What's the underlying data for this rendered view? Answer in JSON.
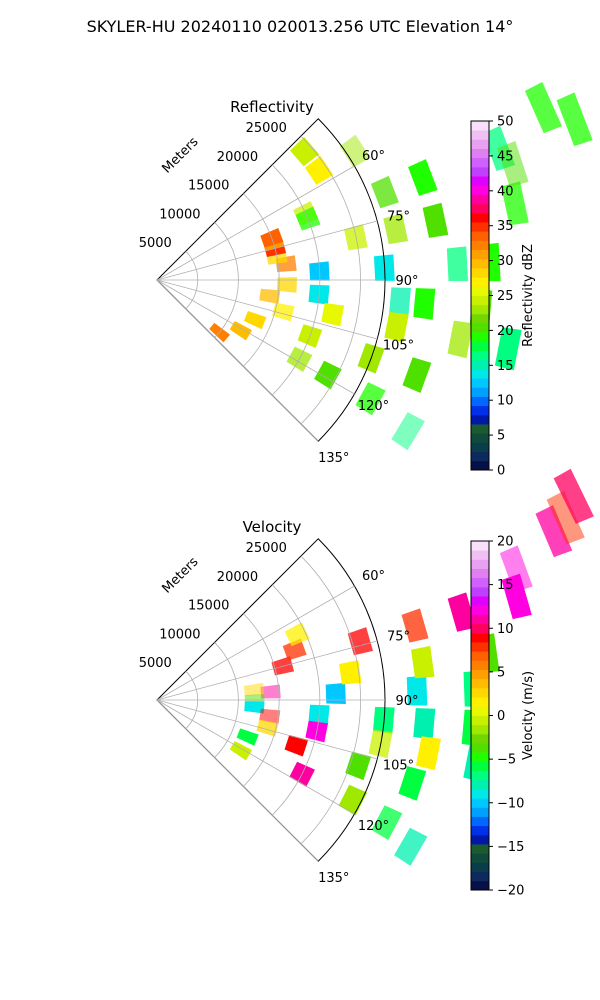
{
  "figure": {
    "suptitle": "SKYLER-HU  20240110  020013.256 UTC Elevation 14°"
  },
  "chart_data": [
    {
      "type": "heatmap",
      "title": "Reflectivity",
      "radial_label": "Meters",
      "radial_ticks": [
        5000,
        10000,
        15000,
        20000,
        25000
      ],
      "radial_tick_labels": [
        "5000",
        "10000",
        "15000",
        "20000",
        "25000"
      ],
      "r_max": 28000,
      "angle_ticks": [
        60,
        75,
        90,
        105,
        120,
        135
      ],
      "angle_tick_labels": [
        "60°",
        "75°",
        "90°",
        "105°",
        "120°",
        "135°"
      ],
      "angle_range_deg": [
        45,
        135
      ],
      "grid": true,
      "colorbar": {
        "label": "Reflectivity dBZ",
        "min": 0,
        "max": 50,
        "ticks": [
          0,
          5,
          10,
          15,
          20,
          25,
          30,
          35,
          40,
          45,
          50
        ],
        "tick_labels": [
          "0",
          "5",
          "10",
          "15",
          "20",
          "25",
          "30",
          "35",
          "40",
          "45",
          "50"
        ],
        "colors": [
          "#08104a",
          "#0c2a5e",
          "#0a3d4a",
          "#104a3a",
          "#1a5c30",
          "#0018a8",
          "#0030e8",
          "#0068ff",
          "#00a0ff",
          "#00c8ff",
          "#00e8e8",
          "#00f0b0",
          "#00ff80",
          "#00ff40",
          "#20ff00",
          "#50e000",
          "#70d800",
          "#a0e800",
          "#c8f000",
          "#e8f800",
          "#fff000",
          "#ffd800",
          "#ffbc00",
          "#ffa000",
          "#ff8000",
          "#ff6000",
          "#ff3000",
          "#ff0000",
          "#ff0060",
          "#ff00a0",
          "#ff00e0",
          "#e000ff",
          "#c040ff",
          "#d060ff",
          "#e080f0",
          "#e8a0f0",
          "#f0c0f4",
          "#f8e0fa"
        ]
      },
      "cells": [
        [
          95,
          20,
          40,
          "#00e8e8"
        ],
        [
          95,
          30,
          30,
          "#00f0b0"
        ],
        [
          95,
          33,
          40,
          "#20ff00"
        ],
        [
          95,
          40,
          40,
          "#50e000"
        ],
        [
          87,
          20,
          40,
          "#00c8ff"
        ],
        [
          87,
          28,
          40,
          "#00e8e8"
        ],
        [
          87,
          37,
          30,
          "#00ff80"
        ],
        [
          87,
          41,
          40,
          "#20ff00"
        ],
        [
          78,
          25,
          30,
          "#c8f000"
        ],
        [
          78,
          30,
          30,
          "#a0e800"
        ],
        [
          78,
          35,
          40,
          "#50e000"
        ],
        [
          78,
          45,
          30,
          "#20ff00"
        ],
        [
          69,
          30,
          30,
          "#50e000"
        ],
        [
          69,
          35,
          40,
          "#20ff00"
        ],
        [
          69,
          45,
          30,
          "#00ff80"
        ],
        [
          69,
          55,
          30,
          "#20ff00"
        ],
        [
          72,
          46,
          20,
          "#50e000"
        ],
        [
          66,
          52,
          30,
          "#20ff00"
        ],
        [
          101,
          22,
          40,
          "#e8f800"
        ],
        [
          101,
          30,
          40,
          "#c8f000"
        ],
        [
          101,
          38,
          30,
          "#a0e800"
        ],
        [
          101,
          44,
          40,
          "#00ff80"
        ],
        [
          110,
          20,
          40,
          "#c8f000"
        ],
        [
          110,
          28,
          40,
          "#a0e800"
        ],
        [
          110,
          34,
          40,
          "#50e000"
        ],
        [
          119,
          20,
          30,
          "#a0e800"
        ],
        [
          119,
          24,
          40,
          "#50e000"
        ],
        [
          119,
          30,
          30,
          "#20ff00"
        ],
        [
          121,
          36,
          20,
          "#00ff80"
        ],
        [
          83,
          16,
          30,
          "#ff8000"
        ],
        [
          79,
          15,
          30,
          "#ffd800"
        ],
        [
          75,
          15,
          40,
          "#ff3000"
        ],
        [
          72,
          15,
          30,
          "#ffbc00"
        ],
        [
          70,
          15,
          40,
          "#ff6000"
        ],
        [
          66,
          20,
          30,
          "#c8f000"
        ],
        [
          56,
          24,
          40,
          "#fff000"
        ],
        [
          57,
          29,
          20,
          "#a0e800"
        ],
        [
          49,
          24,
          40,
          "#c8f000"
        ],
        [
          68,
          20,
          30,
          "#20ff00"
        ],
        [
          92,
          16,
          30,
          "#ffd800"
        ],
        [
          98,
          14,
          30,
          "#ffbc00"
        ],
        [
          104,
          16,
          30,
          "#fff000"
        ],
        [
          112,
          13,
          40,
          "#ffd800"
        ],
        [
          121,
          12,
          40,
          "#ffbc00"
        ],
        [
          130,
          10,
          40,
          "#ff8000"
        ]
      ]
    },
    {
      "type": "heatmap",
      "title": "Velocity",
      "radial_label": "Meters",
      "radial_ticks": [
        5000,
        10000,
        15000,
        20000,
        25000
      ],
      "radial_tick_labels": [
        "5000",
        "10000",
        "15000",
        "20000",
        "25000"
      ],
      "r_max": 28000,
      "angle_ticks": [
        60,
        75,
        90,
        105,
        120,
        135
      ],
      "angle_tick_labels": [
        "60°",
        "75°",
        "90°",
        "105°",
        "120°",
        "135°"
      ],
      "angle_range_deg": [
        45,
        135
      ],
      "grid": true,
      "colorbar": {
        "label": "Velocity (m/s)",
        "min": -20,
        "max": 20,
        "ticks": [
          -20,
          -15,
          -10,
          -5,
          0,
          5,
          10,
          15,
          20
        ],
        "tick_labels": [
          "−20",
          "−15",
          "−10",
          "−5",
          "0",
          "5",
          "10",
          "15",
          "20"
        ],
        "colors": [
          "#08104a",
          "#0c2a5e",
          "#0a3d4a",
          "#104a3a",
          "#1a5c30",
          "#0018a8",
          "#0030e8",
          "#0068ff",
          "#00a0ff",
          "#00c8ff",
          "#00e8e8",
          "#00f0b0",
          "#00ff80",
          "#00ff40",
          "#20ff00",
          "#50e000",
          "#70d800",
          "#a0e800",
          "#c8f000",
          "#e8f800",
          "#fff000",
          "#ffd800",
          "#ffbc00",
          "#ffa000",
          "#ff8000",
          "#ff6000",
          "#ff3000",
          "#ff0000",
          "#ff0060",
          "#ff00a0",
          "#ff00e0",
          "#e000ff",
          "#c040ff",
          "#d060ff",
          "#e080f0",
          "#e8a0f0",
          "#f0c0f4",
          "#f8e0fa"
        ]
      },
      "cells": [
        [
          95,
          20,
          40,
          "#00e8e8"
        ],
        [
          95,
          28,
          40,
          "#00ff80"
        ],
        [
          95,
          33,
          40,
          "#00f0b0"
        ],
        [
          95,
          39,
          40,
          "#00ff40"
        ],
        [
          88,
          22,
          40,
          "#00c8ff"
        ],
        [
          88,
          32,
          40,
          "#00e8e8"
        ],
        [
          88,
          39,
          40,
          "#00ff80"
        ],
        [
          82,
          24,
          40,
          "#fff000"
        ],
        [
          82,
          33,
          40,
          "#c8f000"
        ],
        [
          82,
          41,
          40,
          "#50e000"
        ],
        [
          74,
          26,
          30,
          "#ff0000"
        ],
        [
          74,
          33,
          30,
          "#ff3000"
        ],
        [
          74,
          39,
          40,
          "#ff00a0"
        ],
        [
          74,
          46,
          40,
          "#ff00e0"
        ],
        [
          70,
          47,
          20,
          "#ff00e0"
        ],
        [
          67,
          53,
          30,
          "#ff00a0"
        ],
        [
          66,
          55,
          20,
          "#ff3000"
        ],
        [
          64,
          57,
          30,
          "#ff0060"
        ],
        [
          101,
          20,
          40,
          "#ff00e0"
        ],
        [
          101,
          28,
          30,
          "#c8f000"
        ],
        [
          101,
          34,
          40,
          "#fff000"
        ],
        [
          101,
          40,
          40,
          "#00f0b0"
        ],
        [
          108,
          18,
          40,
          "#ff0000"
        ],
        [
          108,
          26,
          40,
          "#50e000"
        ],
        [
          108,
          33,
          40,
          "#00ff40"
        ],
        [
          117,
          20,
          40,
          "#ff00a0"
        ],
        [
          117,
          27,
          40,
          "#a0e800"
        ],
        [
          118,
          32,
          30,
          "#00ff40"
        ],
        [
          120,
          36,
          30,
          "#00f0b0"
        ],
        [
          86,
          14,
          20,
          "#ff00a0"
        ],
        [
          84,
          12,
          20,
          "#ffd800"
        ],
        [
          90,
          12,
          20,
          "#50e000"
        ],
        [
          94,
          12,
          40,
          "#00e8e8"
        ],
        [
          98,
          14,
          20,
          "#ff0000"
        ],
        [
          104,
          14,
          30,
          "#ffd800"
        ],
        [
          112,
          12,
          40,
          "#00ff40"
        ],
        [
          121,
          12,
          40,
          "#c8f000"
        ],
        [
          75,
          16,
          30,
          "#ff0000"
        ],
        [
          70,
          18,
          30,
          "#ff3000"
        ],
        [
          65,
          19,
          30,
          "#fff000"
        ]
      ]
    }
  ]
}
